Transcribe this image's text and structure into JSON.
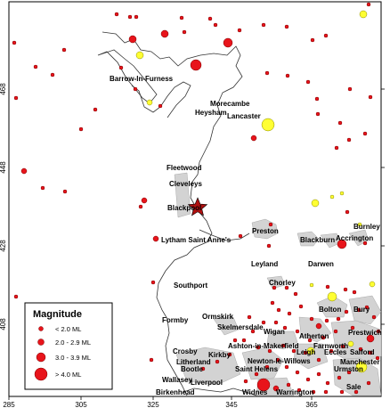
{
  "axes": {
    "x_ticks": [
      "285",
      "305",
      "325",
      "345",
      "365"
    ],
    "y_ticks": [
      "468",
      "448",
      "428",
      "408"
    ]
  },
  "places": [
    "Barrow-In-Furness",
    "Morecambe",
    "Heysham",
    "Lancaster",
    "Fleetwood",
    "Cleveleys",
    "Blackpool",
    "Lytham Saint Anne's",
    "Preston",
    "Burnley",
    "Blackburn",
    "Accrington",
    "Leyland",
    "Darwen",
    "Southport",
    "Chorley",
    "Bolton",
    "Bury",
    "Formby",
    "Ormskirk",
    "Skelmersdale",
    "Wigan",
    "Atherton",
    "Farnworth",
    "Prestwich",
    "Ashton-in-Makerfield",
    "Leigh",
    "Eccles",
    "Salford",
    "Manchester",
    "Crosby",
    "Litherland",
    "Kirkby",
    "Newton-le-Willows",
    "Bootle",
    "Saint Helens",
    "Urmston",
    "Wallasey",
    "Liverpool",
    "Sale",
    "Birkenhead",
    "Widnes",
    "Warrington"
  ],
  "legend": {
    "title": "Magnitude",
    "items": [
      {
        "label": "< 2.0 ML",
        "min": null,
        "max": 2.0,
        "color": "#e8141b"
      },
      {
        "label": "2.0 - 2.9 ML",
        "min": 2.0,
        "max": 2.9,
        "color": "#e8141b"
      },
      {
        "label": "3.0 - 3.9 ML",
        "min": 3.0,
        "max": 3.9,
        "color": "#e8141b"
      },
      {
        "label": "> 4.0 ML",
        "min": 4.0,
        "max": null,
        "color": "#e8141b"
      }
    ]
  },
  "colors": {
    "event": "#e8141b",
    "event_highlight": "#ffff33",
    "urban": "#d3d3d3",
    "star": "#b01010"
  }
}
